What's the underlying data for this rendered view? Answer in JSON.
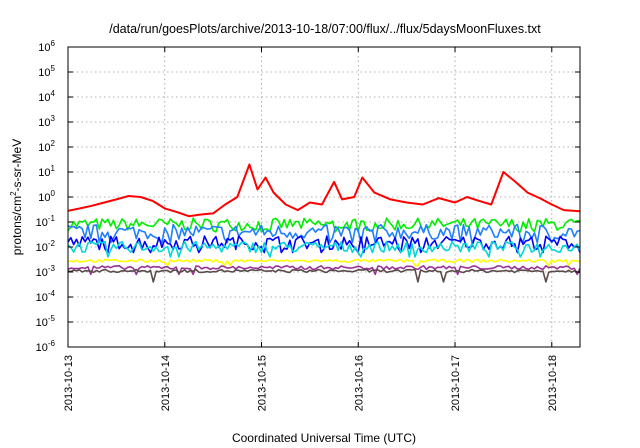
{
  "chart_data": {
    "type": "line",
    "title": "/data/run/goesPlots/archive/2013-10-18/07:00/flux/../flux/5daysMoonFluxes.txt",
    "xlabel": "Coordinated Universal Time (UTC)",
    "ylabel_parts": [
      "protons/cm",
      "2",
      "-s-sr-MeV"
    ],
    "x_scale": "time",
    "xlim": [
      "2013-10-13T00:00",
      "2013-10-18T07:00"
    ],
    "x_ticks": [
      "2013-10-13",
      "2013-10-14",
      "2013-10-15",
      "2013-10-16",
      "2013-10-17",
      "2013-10-18"
    ],
    "y_scale": "log",
    "ylim": [
      1e-06,
      1000000.0
    ],
    "y_ticks": [
      {
        "base": "10",
        "exp": "-6"
      },
      {
        "base": "10",
        "exp": "-5"
      },
      {
        "base": "10",
        "exp": "-4"
      },
      {
        "base": "10",
        "exp": "-3"
      },
      {
        "base": "10",
        "exp": "-2"
      },
      {
        "base": "10",
        "exp": "-1"
      },
      {
        "base": "10",
        "exp": "0"
      },
      {
        "base": "10",
        "exp": "1"
      },
      {
        "base": "10",
        "exp": "2"
      },
      {
        "base": "10",
        "exp": "3"
      },
      {
        "base": "10",
        "exp": "4"
      },
      {
        "base": "10",
        "exp": "5"
      },
      {
        "base": "10",
        "exp": "6"
      }
    ],
    "grid": true,
    "series": [
      {
        "color": "#ff0000",
        "points": [
          [
            "2013-10-13T00:00",
            0.28
          ],
          [
            "2013-10-13T03:00",
            0.35
          ],
          [
            "2013-10-13T06:00",
            0.45
          ],
          [
            "2013-10-13T09:00",
            0.6
          ],
          [
            "2013-10-13T12:00",
            0.8
          ],
          [
            "2013-10-13T15:00",
            1.1
          ],
          [
            "2013-10-13T18:00",
            1.0
          ],
          [
            "2013-10-13T21:00",
            0.7
          ],
          [
            "2013-10-14T00:00",
            0.35
          ],
          [
            "2013-10-14T03:00",
            0.25
          ],
          [
            "2013-10-14T06:00",
            0.17
          ],
          [
            "2013-10-14T09:00",
            0.2
          ],
          [
            "2013-10-14T12:00",
            0.22
          ],
          [
            "2013-10-14T15:00",
            0.5
          ],
          [
            "2013-10-14T18:00",
            1.0
          ],
          [
            "2013-10-14T21:00",
            20
          ],
          [
            "2013-10-14T23:00",
            2.0
          ],
          [
            "2013-10-15T01:00",
            6
          ],
          [
            "2013-10-15T03:00",
            1.5
          ],
          [
            "2013-10-15T06:00",
            0.5
          ],
          [
            "2013-10-15T09:00",
            0.3
          ],
          [
            "2013-10-15T12:00",
            0.6
          ],
          [
            "2013-10-15T15:00",
            0.5
          ],
          [
            "2013-10-15T18:00",
            4
          ],
          [
            "2013-10-15T20:00",
            0.8
          ],
          [
            "2013-10-15T23:00",
            1.0
          ],
          [
            "2013-10-16T01:00",
            6
          ],
          [
            "2013-10-16T04:00",
            1.5
          ],
          [
            "2013-10-16T08:00",
            0.8
          ],
          [
            "2013-10-16T12:00",
            0.6
          ],
          [
            "2013-10-16T16:00",
            0.5
          ],
          [
            "2013-10-16T20:00",
            0.9
          ],
          [
            "2013-10-17T00:00",
            0.6
          ],
          [
            "2013-10-17T03:00",
            1.0
          ],
          [
            "2013-10-17T06:00",
            0.7
          ],
          [
            "2013-10-17T09:00",
            0.5
          ],
          [
            "2013-10-17T12:00",
            10
          ],
          [
            "2013-10-17T15:00",
            4
          ],
          [
            "2013-10-17T18:00",
            1.5
          ],
          [
            "2013-10-17T21:00",
            0.9
          ],
          [
            "2013-10-18T00:00",
            0.5
          ],
          [
            "2013-10-18T03:00",
            0.3
          ],
          [
            "2013-10-18T07:00",
            0.27
          ]
        ]
      },
      {
        "color": "#00ee00",
        "level": 0.08,
        "noise": 0.5,
        "dip": 0.04
      },
      {
        "color": "#1f7fff",
        "level": 0.04,
        "noise": 0.6,
        "dip": 0.015
      },
      {
        "color": "#0000ff",
        "level": 0.015,
        "noise": 0.55,
        "dip": 0.006
      },
      {
        "color": "#00d8d8",
        "level": 0.01,
        "noise": 0.45,
        "dip": 0.004
      },
      {
        "color": "#ffff00",
        "level": 0.0028,
        "noise": 0.12,
        "dip": 0.0018
      },
      {
        "color": "#993399",
        "level": 0.0015,
        "noise": 0.15,
        "dip": 0.0008
      },
      {
        "color": "#5a4a4a",
        "level": 0.0011,
        "noise": 0.12,
        "dip": 0.0004
      }
    ]
  }
}
